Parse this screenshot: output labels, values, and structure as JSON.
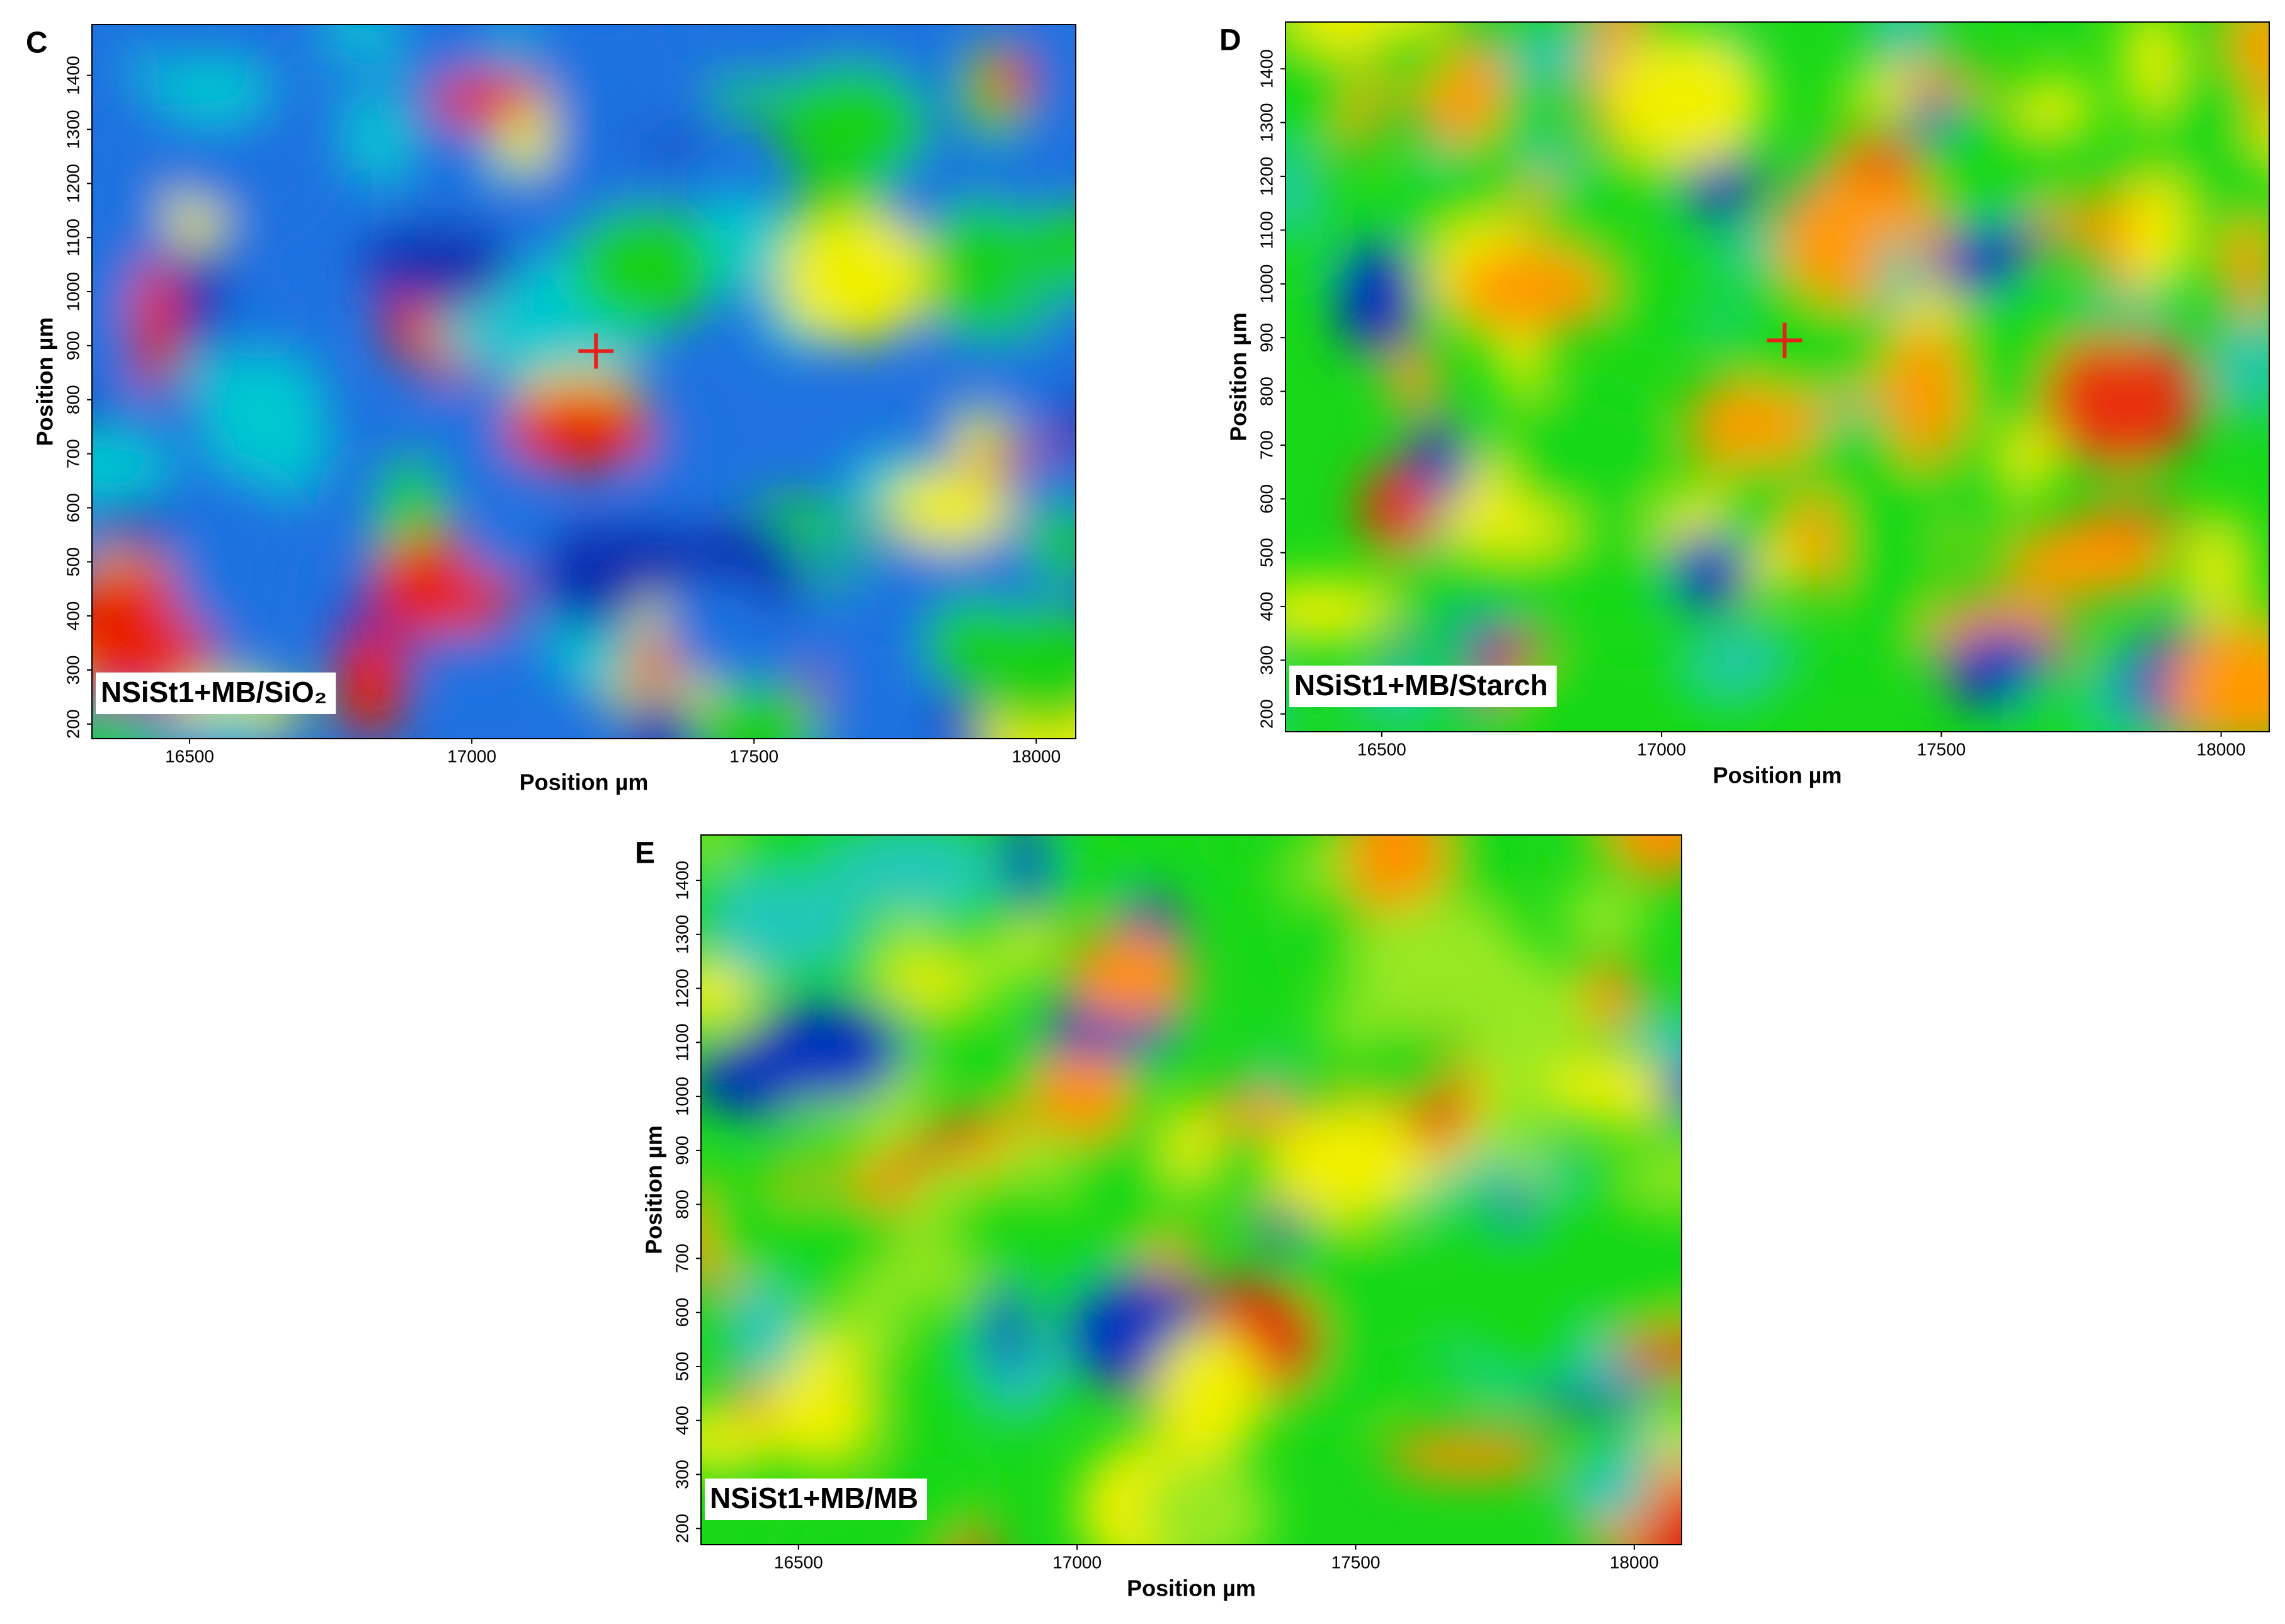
{
  "chart_data": [
    {
      "type": "heatmap",
      "panel": "C",
      "annotation": "NSiSt1+MB/SiO₂",
      "xlabel": "Position µm",
      "ylabel": "Position µm",
      "xlim": [
        16327,
        18070
      ],
      "ylim": [
        173,
        1494
      ],
      "xticks": [
        16500,
        17000,
        17500,
        18000
      ],
      "yticks": [
        200,
        300,
        400,
        500,
        600,
        700,
        800,
        900,
        1000,
        1100,
        1200,
        1300,
        1400
      ],
      "marker": {
        "x": 17220,
        "y": 890,
        "color": "#e8201a"
      },
      "colormap": [
        "#1f72e0",
        "#00c8d0",
        "#18d018",
        "#0a2fb0",
        "#f0f000",
        "#e82000"
      ]
    },
    {
      "type": "heatmap",
      "panel": "D",
      "annotation": "NSiSt1+MB/Starch",
      "xlabel": "Position µm",
      "ylabel": "Position µm",
      "xlim": [
        16328,
        18086
      ],
      "ylim": [
        167,
        1487
      ],
      "xticks": [
        16500,
        17000,
        17500,
        18000
      ],
      "yticks": [
        200,
        300,
        400,
        500,
        600,
        700,
        800,
        900,
        1000,
        1100,
        1200,
        1300,
        1400
      ],
      "marker": {
        "x": 17220,
        "y": 895,
        "color": "#e8201a"
      },
      "colormap": [
        "#18d818",
        "#f0f000",
        "#ff9a00",
        "#e83010",
        "#20c8a8",
        "#0030c0"
      ]
    },
    {
      "type": "heatmap",
      "panel": "E",
      "annotation": "NSiSt1+MB/MB",
      "xlabel": "Position µm",
      "ylabel": "Position µm",
      "xlim": [
        16325,
        18085
      ],
      "ylim": [
        170,
        1484
      ],
      "xticks": [
        16500,
        17000,
        17500,
        18000
      ],
      "yticks": [
        200,
        300,
        400,
        500,
        600,
        700,
        800,
        900,
        1000,
        1100,
        1200,
        1300,
        1400
      ],
      "colormap": [
        "#18d818",
        "#98e820",
        "#f0f000",
        "#20c8b8",
        "#ff9000",
        "#e02010",
        "#0030c0"
      ]
    }
  ]
}
